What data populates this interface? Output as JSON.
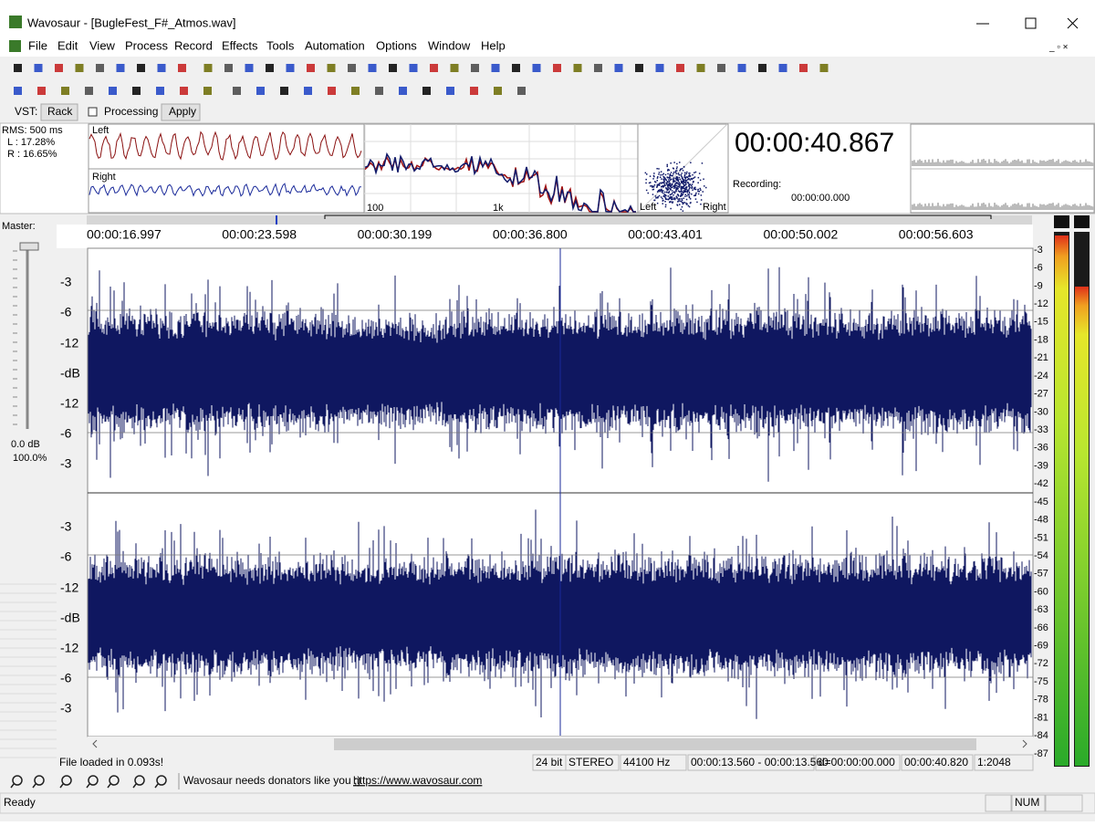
{
  "window": {
    "title": "Wavosaur - [BugleFest_F#_Atmos.wav]"
  },
  "menu": [
    "File",
    "Edit",
    "View",
    "Process",
    "Record",
    "Effects",
    "Tools",
    "Automation",
    "Options",
    "Window",
    "Help"
  ],
  "vst": {
    "label": "VST:",
    "rack": "Rack",
    "processing": "Processing",
    "apply": "Apply"
  },
  "rms": {
    "label": "RMS: 500 ms",
    "left": "L : 17.28%",
    "right": "R : 16.65%"
  },
  "scope": {
    "left": "Left",
    "right": "Right"
  },
  "spectrum": {
    "ticks": [
      "100",
      "1k"
    ]
  },
  "vectorscope": {
    "left": "Left",
    "right": "Right"
  },
  "clock": {
    "time": "00:00:40.867",
    "recording_label": "Recording:",
    "recording_time": "00:00:00.000"
  },
  "master": {
    "label": "Master:",
    "db": "0.0 dB",
    "percent": "100.0%"
  },
  "timeline": [
    "00:00:16.997",
    "00:00:23.598",
    "00:00:30.199",
    "00:00:36.800",
    "00:00:43.401",
    "00:00:50.002",
    "00:00:56.603"
  ],
  "tracks": [
    {
      "db_labels": [
        "-3",
        "-6",
        "-12",
        "-dB",
        "-12",
        "-6",
        "-3"
      ]
    },
    {
      "db_labels": [
        "-3",
        "-6",
        "-12",
        "-dB",
        "-12",
        "-6",
        "-3"
      ]
    }
  ],
  "meter_scale": [
    "-3",
    "-6",
    "-9",
    "-12",
    "-15",
    "-18",
    "-21",
    "-24",
    "-27",
    "-30",
    "-33",
    "-36",
    "-39",
    "-42",
    "-45",
    "-48",
    "-51",
    "-54",
    "-57",
    "-60",
    "-63",
    "-66",
    "-69",
    "-72",
    "-75",
    "-78",
    "-81",
    "-84",
    "-87"
  ],
  "status": {
    "message": "File loaded in 0.093s!",
    "fields": [
      "24 bit",
      "STEREO",
      "44100 Hz",
      "00:00:13.560 - 00:00:13.560",
      "d=00:00:00.000",
      "00:00:40.820",
      "1:2048"
    ]
  },
  "donate": {
    "text": "Wavosaur needs donators like you ;)",
    "link": "https://www.wavosaur.com"
  },
  "statusbar": {
    "ready": "Ready",
    "num": "NUM"
  }
}
